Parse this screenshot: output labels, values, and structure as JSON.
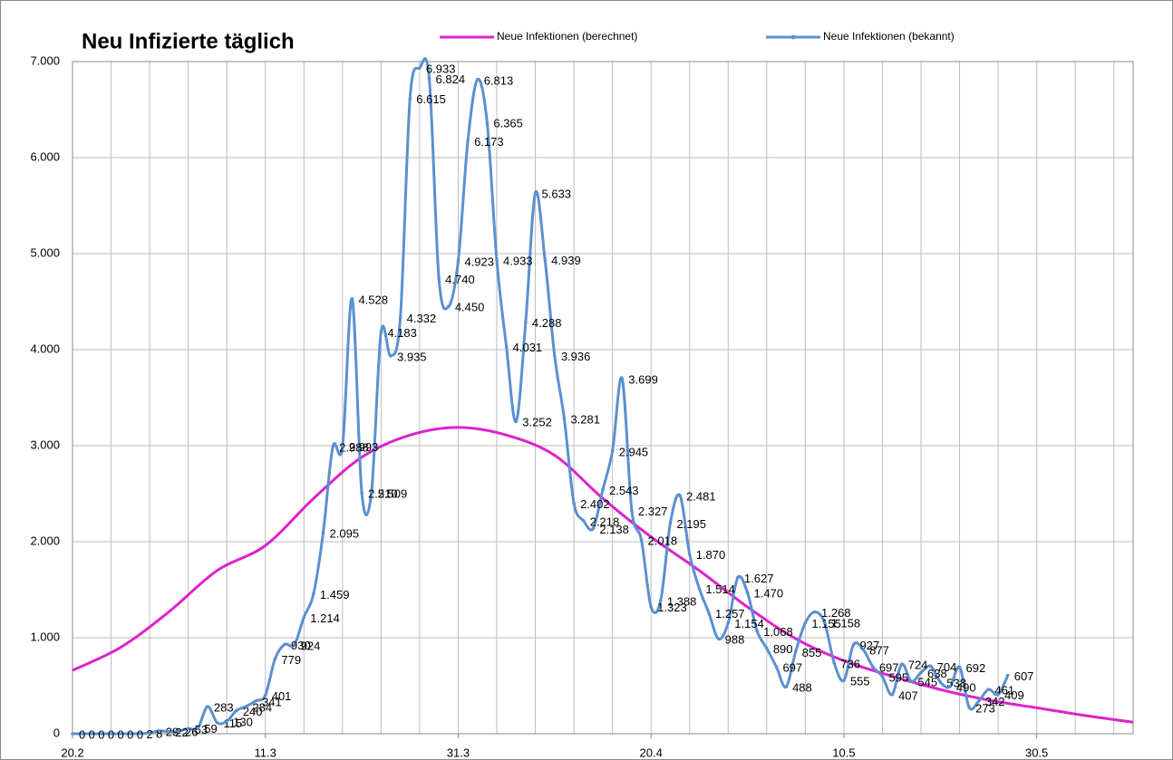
{
  "chart_data": {
    "type": "line",
    "title": "Neu Infizierte täglich",
    "series": [
      {
        "name": "Neue Infektionen (berechnet)",
        "color": "#dd22cc",
        "markers": false,
        "x": [
          0,
          5,
          10,
          15,
          20,
          25,
          30,
          35,
          40,
          45,
          50,
          55,
          60,
          65,
          70,
          75,
          80,
          85,
          90,
          95,
          100,
          105,
          110
        ],
        "values": [
          660,
          900,
          1270,
          1700,
          1960,
          2450,
          2880,
          3110,
          3190,
          3110,
          2900,
          2450,
          2050,
          1700,
          1320,
          990,
          760,
          600,
          460,
          350,
          270,
          190,
          120
        ]
      },
      {
        "name": "Neue Infektionen (bekannt)",
        "color": "#5b8fd1",
        "markers": true,
        "x": [
          0,
          1,
          2,
          3,
          4,
          5,
          6,
          7,
          8,
          9,
          10,
          11,
          12,
          13,
          14,
          15,
          16,
          17,
          18,
          19,
          20,
          21,
          22,
          23,
          24,
          25,
          26,
          27,
          28,
          29,
          30,
          31,
          32,
          33,
          34,
          35,
          36,
          37,
          38,
          39,
          40,
          41,
          42,
          43,
          44,
          45,
          46,
          47,
          48,
          49,
          50,
          51,
          52,
          53,
          54,
          55,
          56,
          57,
          58,
          59,
          60,
          61,
          62,
          63,
          64,
          65,
          66,
          67,
          68,
          69,
          70,
          71,
          72,
          73,
          74,
          75,
          76,
          77,
          78,
          79,
          80,
          81,
          82,
          83,
          84,
          85,
          86,
          87,
          88,
          89,
          90,
          91,
          92,
          93,
          94,
          95,
          96,
          97
        ],
        "values": [
          0,
          0,
          0,
          0,
          0,
          0,
          0,
          2,
          8,
          29,
          22,
          26,
          53,
          59,
          283,
          115,
          130,
          240,
          284,
          341,
          401,
          779,
          930,
          924,
          1214,
          1459,
          2095,
          2988,
          2993,
          4528,
          2510,
          2509,
          4183,
          3935,
          4332,
          6615,
          6933,
          6824,
          4740,
          4450,
          4923,
          6173,
          6813,
          6365,
          4933,
          4031,
          3252,
          4288,
          5633,
          4939,
          3936,
          3281,
          2402,
          2218,
          2138,
          2543,
          2945,
          3699,
          2327,
          2018,
          1323,
          1388,
          2195,
          2481,
          1870,
          1514,
          1257,
          988,
          1154,
          1627,
          1470,
          1068,
          890,
          697,
          488,
          855,
          1155,
          1268,
          1158,
          736,
          555,
          927,
          877,
          697,
          595,
          407,
          724,
          545,
          638,
          704,
          538,
          490,
          692,
          273,
          342,
          461,
          409,
          607
        ],
        "value_labels": [
          "0",
          "0",
          "0",
          "0",
          "0",
          "0",
          "0",
          "2",
          "8",
          "29",
          "22",
          "26",
          "53",
          "59",
          "283",
          "115",
          "130",
          "240",
          "284",
          "341",
          "401",
          "779",
          "930",
          "924",
          "1.214",
          "1.459",
          "2.095",
          "2.988",
          "2.993",
          "4.528",
          "2.510",
          "2.509",
          "4.183",
          "3.935",
          "4.332",
          "6.615",
          "6.933",
          "6.824",
          "4.740",
          "4.450",
          "4.923",
          "6.173",
          "6.813",
          "6.365",
          "4.933",
          "4.031",
          "3.252",
          "4.288",
          "5.633",
          "4.939",
          "3.936",
          "3.281",
          "2.402",
          "2.218",
          "2.138",
          "2.543",
          "2.945",
          "3.699",
          "2.327",
          "2.018",
          "1.323",
          "1.388",
          "2.195",
          "2.481",
          "1.870",
          "1.514",
          "1.257",
          "988",
          "1.154",
          "1.627",
          "1.470",
          "1.068",
          "890",
          "697",
          "488",
          "855",
          "1.155",
          "1.268",
          "1.158",
          "736",
          "555",
          "927",
          "877",
          "697",
          "595",
          "407",
          "724",
          "545",
          "638",
          "704",
          "538",
          "490",
          "692",
          "273",
          "342",
          "461",
          "409",
          "607"
        ]
      }
    ],
    "xlim": [
      0,
      110
    ],
    "xticks": [
      {
        "value": 0,
        "label": "20.2"
      },
      {
        "value": 20,
        "label": "11.3"
      },
      {
        "value": 40,
        "label": "31.3"
      },
      {
        "value": 60,
        "label": "20.4"
      },
      {
        "value": 80,
        "label": "10.5"
      },
      {
        "value": 100,
        "label": "30.5"
      }
    ],
    "xgrid": [
      0,
      4,
      8,
      12,
      16,
      20,
      24,
      28,
      32,
      36,
      40,
      44,
      48,
      52,
      56,
      60,
      64,
      68,
      72,
      76,
      80,
      84,
      88,
      92,
      96,
      100,
      104,
      108
    ],
    "ylim": [
      0,
      7000
    ],
    "yticks": [
      0,
      {
        "value": 1000,
        "label": "1.000"
      },
      {
        "value": 2000,
        "label": "2.000"
      },
      {
        "value": 3000,
        "label": "3.000"
      },
      {
        "value": 4000,
        "label": "4.000"
      },
      {
        "value": 5000,
        "label": "5.000"
      },
      {
        "value": 6000,
        "label": "6.000"
      },
      {
        "value": 7000,
        "label": "7.000"
      }
    ],
    "grid": true
  }
}
